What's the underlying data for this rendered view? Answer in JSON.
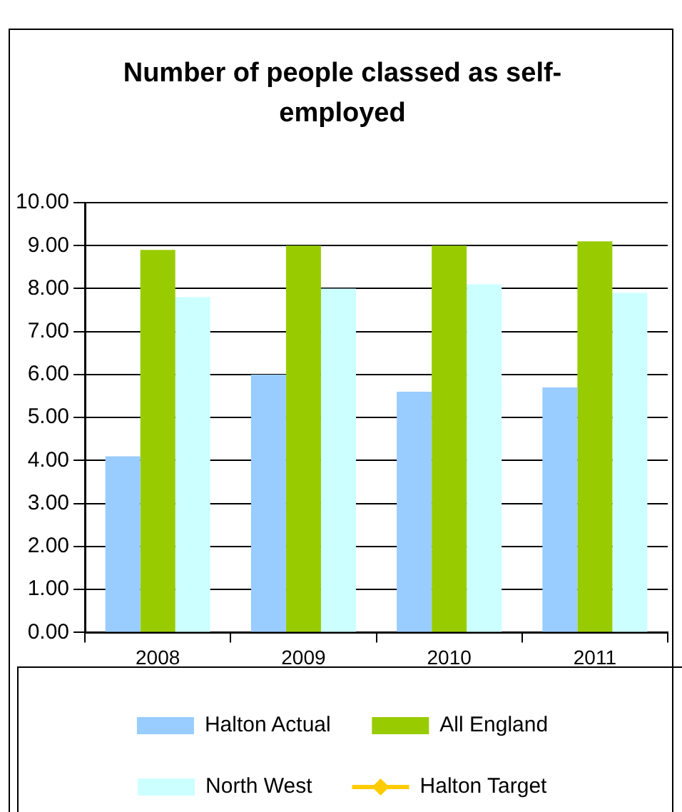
{
  "chart_data": {
    "type": "bar",
    "title": "Number of people classed as self-employed",
    "categories": [
      "2008",
      "2009",
      "2010",
      "2011"
    ],
    "series": [
      {
        "name": "Halton Actual",
        "color": "#99ccff",
        "values": [
          4.1,
          6.0,
          5.6,
          5.7
        ]
      },
      {
        "name": "All England",
        "color": "#99cc00",
        "values": [
          8.9,
          9.0,
          9.0,
          9.1
        ]
      },
      {
        "name": "North West",
        "color": "#ccffff",
        "values": [
          7.8,
          8.0,
          8.1,
          7.9
        ]
      },
      {
        "name": "Halton Target",
        "type": "line",
        "color": "#ffcc00",
        "marker": "diamond",
        "values": [
          null,
          null,
          null,
          null
        ]
      }
    ],
    "ylim": [
      0,
      10
    ],
    "yticks": [
      {
        "value": 0,
        "label": "0.00"
      },
      {
        "value": 1,
        "label": "1.00"
      },
      {
        "value": 2,
        "label": "2.00"
      },
      {
        "value": 3,
        "label": "3.00"
      },
      {
        "value": 4,
        "label": "4.00"
      },
      {
        "value": 5,
        "label": "5.00"
      },
      {
        "value": 6,
        "label": "6.00"
      },
      {
        "value": 7,
        "label": "7.00"
      },
      {
        "value": 8,
        "label": "8.00"
      },
      {
        "value": 9,
        "label": "9.00"
      },
      {
        "value": 10,
        "label": "10.00"
      }
    ],
    "grid": "y",
    "legend": "bottom"
  }
}
